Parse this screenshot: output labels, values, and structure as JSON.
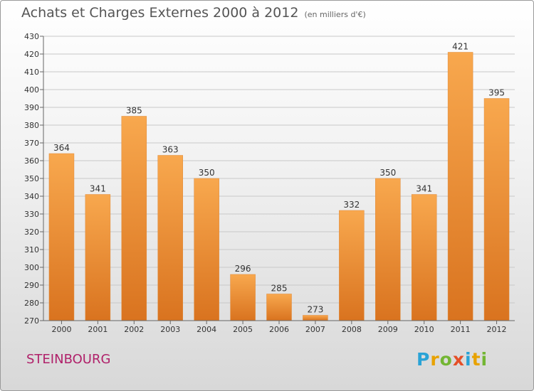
{
  "title": "Achats et Charges Externes 2000 à 2012",
  "unit": "(en milliers d'€)",
  "commune": "STEINBOURG",
  "logo_text": [
    "P",
    "r",
    "o",
    "x",
    "i",
    "t",
    "i"
  ],
  "colors": {
    "bar_top": "#f8a84e",
    "bar_bottom": "#d9731f",
    "grid": "#c8c8c8",
    "axis": "#666666"
  },
  "chart_data": {
    "type": "bar",
    "categories": [
      "2000",
      "2001",
      "2002",
      "2003",
      "2004",
      "2005",
      "2006",
      "2007",
      "2008",
      "2009",
      "2010",
      "2011",
      "2012"
    ],
    "values": [
      364,
      341,
      385,
      363,
      350,
      296,
      285,
      273,
      332,
      350,
      341,
      421,
      395
    ],
    "ylim": [
      270,
      430
    ],
    "ytick_step": 10,
    "grid": true,
    "title": "Achats et Charges Externes 2000 à 2012",
    "xlabel": "",
    "ylabel": ""
  }
}
